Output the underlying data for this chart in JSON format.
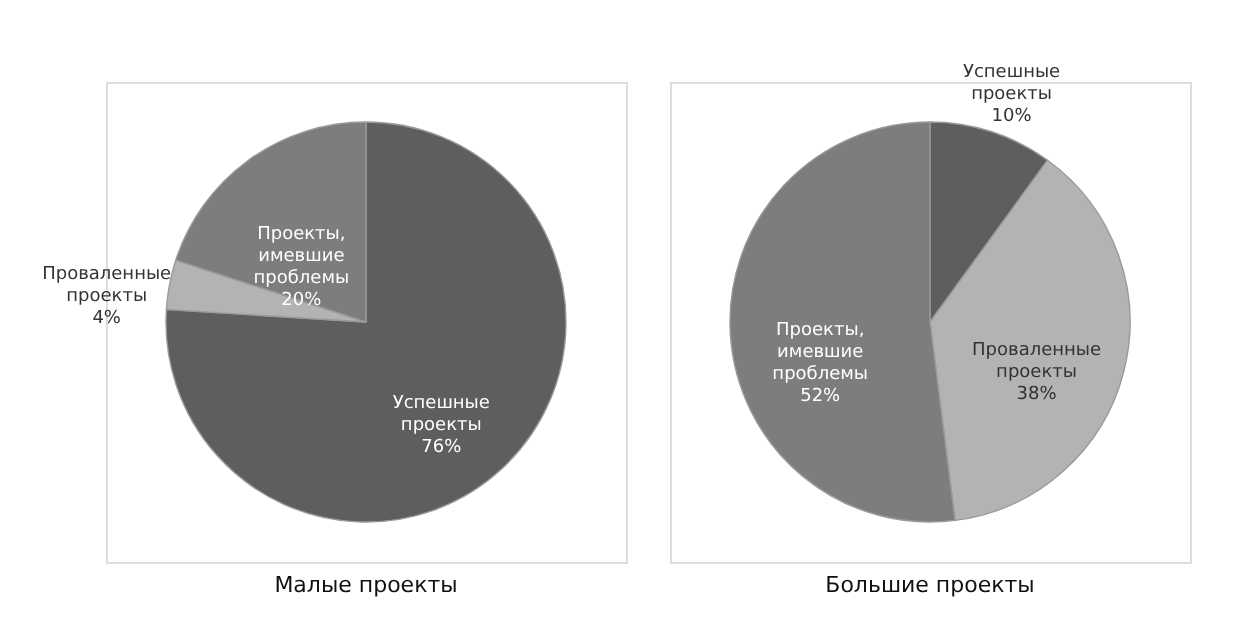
{
  "chart_data": [
    {
      "type": "pie",
      "title": "Малые проекты",
      "categories": [
        "Успешные проекты",
        "Проваленные проекты",
        "Проекты, имевшие проблемы"
      ],
      "values": [
        76,
        4,
        20
      ],
      "value_labels": [
        "76%",
        "4%",
        "20%"
      ],
      "colors": [
        "#5e5e5e",
        "#b3b3b3",
        "#7d7d7d"
      ],
      "legend": false
    },
    {
      "type": "pie",
      "title": "Большие проекты",
      "categories": [
        "Успешные проекты",
        "Проваленные проекты",
        "Проекты, имевшие проблемы"
      ],
      "values": [
        10,
        38,
        52
      ],
      "value_labels": [
        "10%",
        "38%",
        "52%"
      ],
      "colors": [
        "#5e5e5e",
        "#b3b3b3",
        "#7d7d7d"
      ],
      "legend": false
    }
  ]
}
